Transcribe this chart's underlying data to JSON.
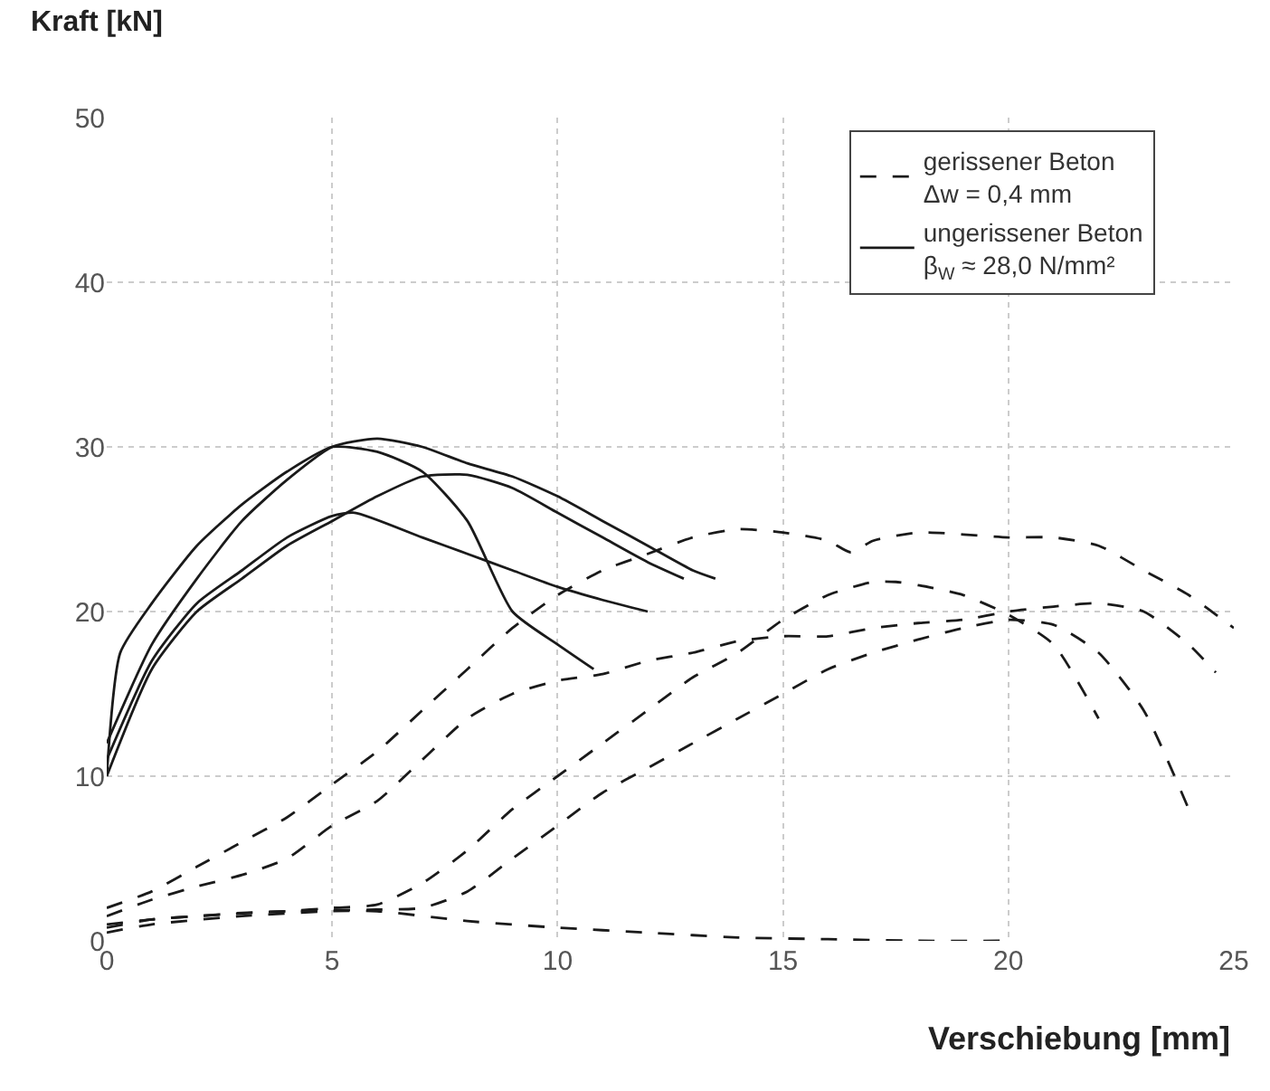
{
  "chart_data": {
    "type": "line",
    "ylabel": "Kraft [kN]",
    "xlabel": "Verschiebung [mm]",
    "xlim": [
      0,
      25
    ],
    "xticks": [
      0,
      5,
      10,
      15,
      20,
      25
    ],
    "ylim": [
      0,
      50
    ],
    "yticks": [
      0,
      10,
      20,
      30,
      40,
      50
    ],
    "grid": true,
    "legend": "top right",
    "marker": "none",
    "series": [
      {
        "name": "gerissener Beton\nΔw = 0,4 mm",
        "color": "#1a1a1a",
        "line_style": "dashed",
        "x": [
          0,
          1,
          2,
          3,
          4,
          5,
          6,
          7,
          8,
          9,
          10,
          11,
          12,
          13,
          14,
          15,
          16,
          16.5,
          17,
          18,
          20,
          21,
          22,
          23,
          24,
          25
        ],
        "values": [
          2,
          3,
          4.5,
          6,
          7.5,
          9.5,
          11.5,
          14,
          16.5,
          19,
          21,
          22.5,
          23.5,
          24.5,
          25,
          24.8,
          24.3,
          23.6,
          24.3,
          24.8,
          24.5,
          24.5,
          24,
          22.5,
          21,
          19
        ]
      },
      {
        "color": "#1a1a1a",
        "line_style": "dashed",
        "x": [
          0,
          1,
          2,
          3,
          4,
          5,
          6,
          7,
          8,
          9,
          10,
          11,
          12,
          13,
          14,
          15,
          16,
          17,
          18,
          19,
          20,
          21,
          22,
          23,
          24,
          24.6
        ],
        "values": [
          1.5,
          2.5,
          3.3,
          4,
          5,
          7,
          8.5,
          11,
          13.5,
          15,
          15.8,
          16.2,
          17,
          17.5,
          18.2,
          18.5,
          18.5,
          19,
          19.3,
          19.5,
          20,
          20.3,
          20.5,
          20,
          18,
          16.3
        ]
      },
      {
        "color": "#1a1a1a",
        "line_style": "dashed",
        "x": [
          0,
          1,
          2,
          3,
          4,
          5,
          6,
          7,
          8,
          9,
          10,
          11,
          12,
          13,
          14,
          15,
          16,
          17,
          17.5,
          18,
          19,
          20,
          21,
          22
        ],
        "values": [
          1,
          1.3,
          1.5,
          1.7,
          1.8,
          2,
          2.2,
          3.5,
          5.5,
          8,
          10,
          12,
          14,
          16,
          17.5,
          19.5,
          21,
          21.8,
          21.8,
          21.6,
          21,
          19.8,
          18,
          13.5
        ]
      },
      {
        "color": "#1a1a1a",
        "line_style": "dashed",
        "x": [
          0,
          1,
          2,
          4,
          6,
          7,
          8,
          9,
          10,
          11,
          12,
          13,
          14,
          15,
          16,
          17,
          18,
          19,
          20,
          21,
          22,
          23,
          24
        ],
        "values": [
          0.8,
          1.3,
          1.5,
          1.8,
          1.9,
          2,
          3,
          5,
          7,
          9,
          10.5,
          12,
          13.5,
          15,
          16.5,
          17.5,
          18.3,
          19,
          19.5,
          19.2,
          17.5,
          14,
          8
        ]
      },
      {
        "color": "#1a1a1a",
        "line_style": "dashed",
        "x": [
          0,
          1,
          3,
          5,
          6,
          8,
          10,
          12,
          14,
          16,
          18,
          20
        ],
        "values": [
          0.5,
          1,
          1.5,
          1.8,
          1.8,
          1.2,
          0.8,
          0.5,
          0.2,
          0.1,
          0,
          0
        ]
      },
      {
        "name": "ungerissener Beton\nβ$_{W}$ ≈ 28,0 N/mm²",
        "color": "#1a1a1a",
        "line_style": "solid",
        "x": [
          0,
          0.3,
          1,
          2,
          3,
          4,
          5,
          6,
          7,
          8,
          9,
          10,
          10.8
        ],
        "values": [
          10,
          17.5,
          20.5,
          24,
          26.5,
          28.5,
          30,
          29.7,
          28.5,
          25.5,
          20,
          18,
          16.5
        ]
      },
      {
        "color": "#1a1a1a",
        "line_style": "solid",
        "x": [
          0,
          1,
          2,
          3,
          4,
          5,
          6,
          7,
          8,
          9,
          10,
          11,
          12,
          13,
          13.5
        ],
        "values": [
          12,
          18,
          22,
          25.5,
          28,
          30,
          30.5,
          30,
          29,
          28.2,
          27,
          25.5,
          24,
          22.5,
          22
        ]
      },
      {
        "color": "#1a1a1a",
        "line_style": "solid",
        "x": [
          0,
          1,
          2,
          3,
          4,
          5,
          5.5,
          7,
          8,
          9,
          10,
          11,
          12
        ],
        "values": [
          11,
          17,
          20.5,
          22.5,
          24.5,
          25.8,
          26,
          24.5,
          23.5,
          22.5,
          21.5,
          20.7,
          20
        ]
      },
      {
        "color": "#1a1a1a",
        "line_style": "solid",
        "x": [
          0,
          1,
          2,
          3,
          4,
          5,
          6,
          7,
          8,
          9,
          10,
          11,
          12,
          12.8
        ],
        "values": [
          10,
          16.5,
          20,
          22,
          24,
          25.5,
          27,
          28.2,
          28.3,
          27.5,
          26,
          24.5,
          23,
          22
        ]
      }
    ]
  }
}
